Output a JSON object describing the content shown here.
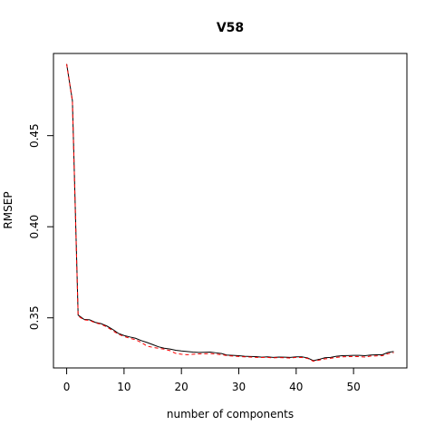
{
  "chart_data": {
    "type": "line",
    "title": "V58",
    "xlabel": "number of components",
    "ylabel": "RMSEP",
    "xlim": [
      -2.3,
      59.3
    ],
    "ylim": [
      0.3225,
      0.4951
    ],
    "xticks": [
      0,
      10,
      20,
      30,
      40,
      50
    ],
    "yticks": [
      0.35,
      0.4,
      0.45
    ],
    "ytick_labels": [
      "0.35",
      "0.40",
      "0.45"
    ],
    "grid": false,
    "legend": false,
    "series": [
      {
        "style": "solid",
        "color": "#000000",
        "x": [
          0,
          1,
          2,
          3,
          4,
          5,
          6,
          7,
          8,
          9,
          10,
          11,
          12,
          13,
          14,
          15,
          16,
          17,
          18,
          19,
          20,
          21,
          22,
          23,
          24,
          25,
          26,
          27,
          28,
          29,
          30,
          31,
          32,
          33,
          34,
          35,
          36,
          37,
          38,
          39,
          40,
          41,
          42,
          43,
          44,
          45,
          46,
          47,
          48,
          49,
          50,
          51,
          52,
          53,
          54,
          55,
          56,
          57
        ],
        "values": [
          0.4893,
          0.4693,
          0.3515,
          0.3492,
          0.3489,
          0.3475,
          0.3468,
          0.3455,
          0.3437,
          0.3415,
          0.3403,
          0.3395,
          0.3388,
          0.3375,
          0.3365,
          0.3353,
          0.3341,
          0.3333,
          0.3329,
          0.3322,
          0.3318,
          0.3315,
          0.3312,
          0.331,
          0.3311,
          0.3312,
          0.3308,
          0.3304,
          0.3295,
          0.3294,
          0.3292,
          0.3289,
          0.3288,
          0.3287,
          0.3284,
          0.3286,
          0.3283,
          0.3285,
          0.3284,
          0.3283,
          0.3286,
          0.3286,
          0.328,
          0.3265,
          0.3272,
          0.3281,
          0.3283,
          0.3289,
          0.3292,
          0.3293,
          0.3294,
          0.3294,
          0.3292,
          0.3296,
          0.3297,
          0.3297,
          0.331,
          0.3315
        ]
      },
      {
        "style": "dashed",
        "color": "#ff0000",
        "x": [
          0,
          1,
          2,
          3,
          4,
          5,
          6,
          7,
          8,
          9,
          10,
          11,
          12,
          13,
          14,
          15,
          16,
          17,
          18,
          19,
          20,
          21,
          22,
          23,
          24,
          25,
          26,
          27,
          28,
          29,
          30,
          31,
          32,
          33,
          34,
          35,
          36,
          37,
          38,
          39,
          40,
          41,
          42,
          43,
          44,
          45,
          46,
          47,
          48,
          49,
          50,
          51,
          52,
          53,
          54,
          55,
          56,
          57
        ],
        "values": [
          0.4893,
          0.469,
          0.351,
          0.3489,
          0.3486,
          0.3472,
          0.3465,
          0.345,
          0.343,
          0.341,
          0.3398,
          0.3388,
          0.338,
          0.3365,
          0.3345,
          0.3338,
          0.3333,
          0.3328,
          0.332,
          0.3305,
          0.33,
          0.3298,
          0.33,
          0.3302,
          0.3303,
          0.3304,
          0.3301,
          0.3298,
          0.3292,
          0.329,
          0.3288,
          0.3286,
          0.3285,
          0.3283,
          0.3282,
          0.3283,
          0.328,
          0.3282,
          0.3281,
          0.3279,
          0.3283,
          0.3282,
          0.3277,
          0.3262,
          0.3268,
          0.3275,
          0.3278,
          0.3283,
          0.3286,
          0.3287,
          0.3288,
          0.3287,
          0.3285,
          0.329,
          0.3291,
          0.3292,
          0.3303,
          0.3309
        ]
      }
    ]
  }
}
